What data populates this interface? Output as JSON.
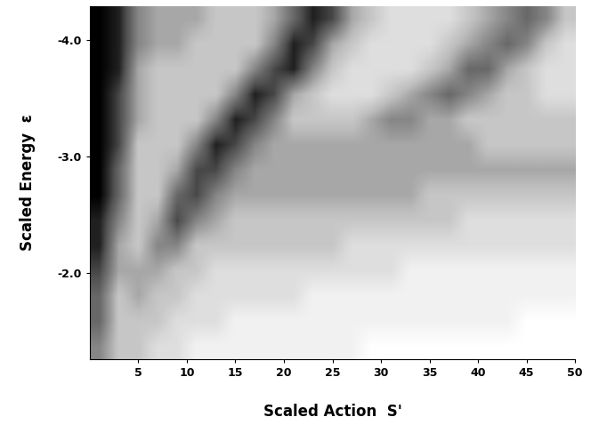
{
  "chart_data": {
    "type": "heatmap",
    "x_label": "Scaled Action  S'",
    "y_label": "Scaled Energy  ε",
    "xlim": [
      0,
      50
    ],
    "ylim": [
      -1.26,
      -4.29
    ],
    "xticks": [
      5,
      10,
      15,
      20,
      25,
      30,
      35,
      40,
      45,
      50
    ],
    "yticks": [
      -4.0,
      -3.0,
      -2.0
    ],
    "color": "Greys",
    "cells": [
      [
        9,
        8,
        5,
        4,
        4,
        4,
        3,
        3,
        3,
        4,
        6,
        8,
        7,
        4,
        3,
        2,
        2,
        2,
        2,
        3,
        4,
        5,
        6,
        5,
        3
      ],
      [
        9,
        8,
        5,
        4,
        4,
        3,
        3,
        3,
        3,
        5,
        8,
        7,
        4,
        3,
        2,
        2,
        2,
        2,
        3,
        4,
        5,
        6,
        5,
        3,
        2
      ],
      [
        9,
        8,
        4,
        3,
        3,
        3,
        3,
        3,
        5,
        7,
        8,
        5,
        3,
        2,
        2,
        2,
        2,
        3,
        4,
        6,
        6,
        4,
        3,
        2,
        2
      ],
      [
        9,
        7,
        4,
        3,
        3,
        3,
        3,
        5,
        8,
        7,
        4,
        3,
        2,
        2,
        2,
        3,
        4,
        5,
        6,
        5,
        4,
        3,
        3,
        2,
        2
      ],
      [
        9,
        7,
        4,
        3,
        3,
        3,
        5,
        8,
        7,
        5,
        3,
        3,
        3,
        3,
        4,
        5,
        5,
        4,
        4,
        3,
        3,
        3,
        3,
        3,
        3
      ],
      [
        9,
        7,
        3,
        3,
        3,
        5,
        8,
        7,
        5,
        4,
        4,
        4,
        4,
        4,
        4,
        4,
        4,
        4,
        4,
        4,
        3,
        3,
        3,
        3,
        3
      ],
      [
        9,
        6,
        3,
        3,
        4,
        7,
        7,
        5,
        4,
        4,
        4,
        4,
        4,
        4,
        4,
        4,
        4,
        4,
        4,
        4,
        4,
        4,
        4,
        4,
        4
      ],
      [
        9,
        6,
        3,
        3,
        6,
        7,
        5,
        4,
        4,
        4,
        4,
        4,
        4,
        4,
        4,
        4,
        4,
        3,
        3,
        3,
        3,
        3,
        3,
        3,
        3
      ],
      [
        8,
        5,
        3,
        4,
        7,
        5,
        4,
        3,
        3,
        3,
        3,
        3,
        3,
        3,
        3,
        3,
        3,
        3,
        3,
        2,
        2,
        2,
        2,
        2,
        2
      ],
      [
        8,
        4,
        3,
        5,
        5,
        3,
        3,
        3,
        3,
        3,
        3,
        3,
        3,
        2,
        2,
        2,
        2,
        2,
        2,
        2,
        2,
        2,
        2,
        2,
        2
      ],
      [
        7,
        4,
        4,
        4,
        3,
        3,
        2,
        2,
        2,
        2,
        2,
        2,
        2,
        2,
        2,
        2,
        1,
        1,
        1,
        1,
        1,
        1,
        1,
        1,
        1
      ],
      [
        6,
        3,
        4,
        3,
        3,
        2,
        2,
        2,
        2,
        2,
        2,
        1,
        1,
        1,
        1,
        1,
        1,
        1,
        1,
        1,
        1,
        1,
        1,
        1,
        1
      ],
      [
        6,
        3,
        3,
        3,
        2,
        2,
        2,
        1,
        1,
        1,
        1,
        1,
        1,
        1,
        1,
        1,
        1,
        1,
        1,
        1,
        1,
        1,
        0,
        0,
        0
      ],
      [
        5,
        3,
        3,
        2,
        2,
        1,
        1,
        1,
        1,
        1,
        1,
        1,
        1,
        1,
        0,
        0,
        0,
        0,
        0,
        0,
        0,
        0,
        0,
        0,
        0
      ]
    ]
  }
}
